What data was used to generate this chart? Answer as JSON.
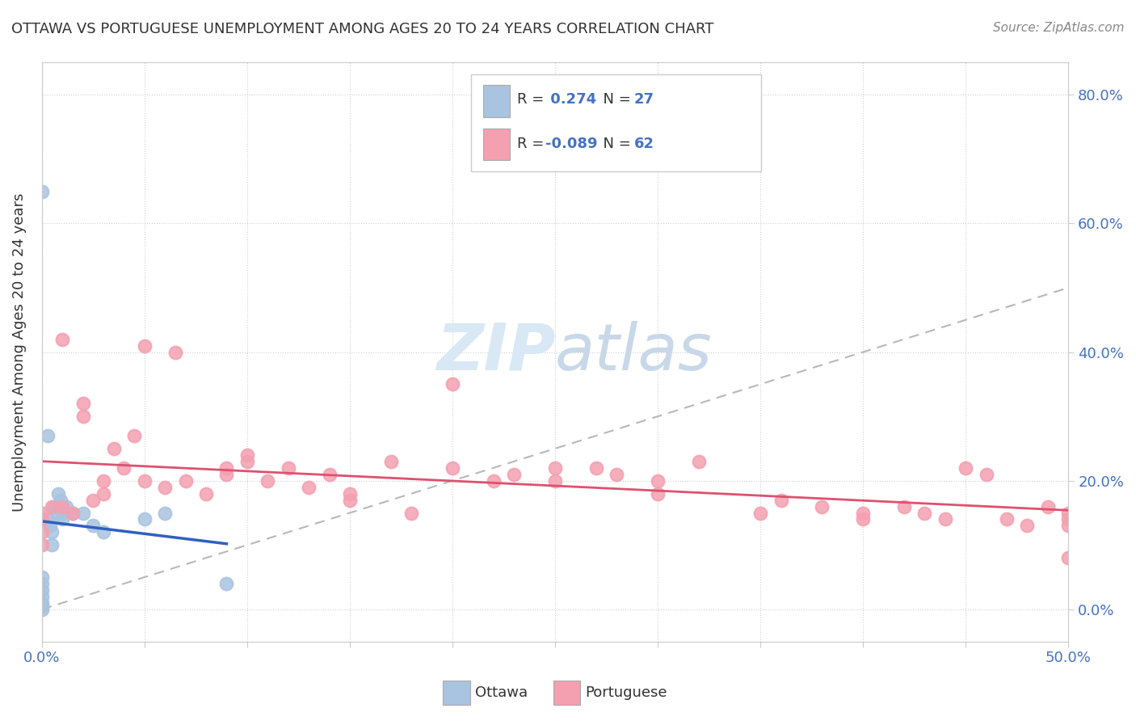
{
  "title": "OTTAWA VS PORTUGUESE UNEMPLOYMENT AMONG AGES 20 TO 24 YEARS CORRELATION CHART",
  "source": "Source: ZipAtlas.com",
  "ylabel": "Unemployment Among Ages 20 to 24 years",
  "xlim": [
    0.0,
    0.5
  ],
  "ylim": [
    -0.05,
    0.85
  ],
  "ottawa_color": "#a8c4e0",
  "portuguese_color": "#f4a0b0",
  "trend_ottawa_color": "#3060c0",
  "trend_portuguese_color": "#e05070",
  "diagonal_color": "#b8b8b8",
  "watermark_color": "#d8e8f4",
  "legend_R1": "R = ",
  "legend_V1": " 0.274",
  "legend_N1_label": "  N = ",
  "legend_N1_val": "27",
  "legend_R2": "R = ",
  "legend_V2": "-0.089",
  "legend_N2_label": "  N = ",
  "legend_N2_val": "62",
  "ottawa_scatter_x": [
    0.0,
    0.0,
    0.0,
    0.0,
    0.0,
    0.0,
    0.0,
    0.0,
    0.003,
    0.003,
    0.004,
    0.005,
    0.005,
    0.006,
    0.007,
    0.008,
    0.009,
    0.01,
    0.01,
    0.012,
    0.015,
    0.02,
    0.025,
    0.03,
    0.05,
    0.06,
    0.09
  ],
  "ottawa_scatter_y": [
    0.65,
    0.05,
    0.04,
    0.03,
    0.02,
    0.01,
    0.005,
    0.0,
    0.27,
    0.14,
    0.13,
    0.12,
    0.1,
    0.16,
    0.15,
    0.18,
    0.17,
    0.15,
    0.14,
    0.16,
    0.15,
    0.15,
    0.13,
    0.12,
    0.14,
    0.15,
    0.04
  ],
  "portuguese_scatter_x": [
    0.0,
    0.0,
    0.0,
    0.0,
    0.005,
    0.01,
    0.01,
    0.015,
    0.02,
    0.02,
    0.025,
    0.03,
    0.03,
    0.035,
    0.04,
    0.045,
    0.05,
    0.05,
    0.06,
    0.065,
    0.07,
    0.08,
    0.09,
    0.09,
    0.1,
    0.1,
    0.11,
    0.12,
    0.13,
    0.14,
    0.15,
    0.15,
    0.17,
    0.18,
    0.2,
    0.2,
    0.22,
    0.23,
    0.25,
    0.25,
    0.27,
    0.28,
    0.3,
    0.3,
    0.32,
    0.35,
    0.36,
    0.38,
    0.4,
    0.4,
    0.42,
    0.43,
    0.44,
    0.45,
    0.46,
    0.47,
    0.48,
    0.49,
    0.5,
    0.5,
    0.5,
    0.5
  ],
  "portuguese_scatter_y": [
    0.15,
    0.14,
    0.12,
    0.1,
    0.16,
    0.42,
    0.16,
    0.15,
    0.32,
    0.3,
    0.17,
    0.2,
    0.18,
    0.25,
    0.22,
    0.27,
    0.41,
    0.2,
    0.19,
    0.4,
    0.2,
    0.18,
    0.22,
    0.21,
    0.24,
    0.23,
    0.2,
    0.22,
    0.19,
    0.21,
    0.18,
    0.17,
    0.23,
    0.15,
    0.35,
    0.22,
    0.2,
    0.21,
    0.22,
    0.2,
    0.22,
    0.21,
    0.2,
    0.18,
    0.23,
    0.15,
    0.17,
    0.16,
    0.15,
    0.14,
    0.16,
    0.15,
    0.14,
    0.22,
    0.21,
    0.14,
    0.13,
    0.16,
    0.15,
    0.14,
    0.13,
    0.08
  ]
}
